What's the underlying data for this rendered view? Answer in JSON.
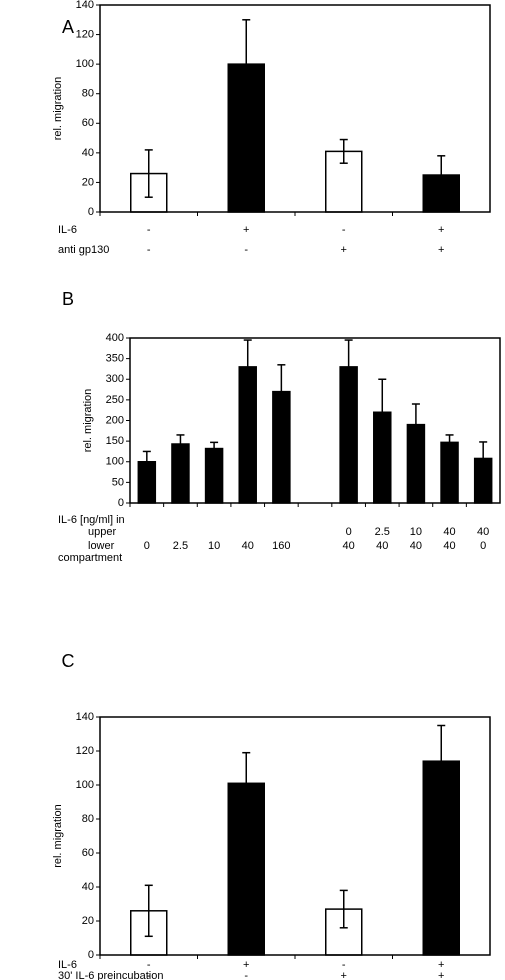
{
  "chart_data": [
    {
      "type": "bar",
      "panel": "A",
      "ylabel": "rel. migration",
      "values": [
        26,
        100,
        41,
        25
      ],
      "errors": [
        16,
        30,
        8,
        13
      ],
      "colors": [
        "#ffffff",
        "#000000",
        "#ffffff",
        "#000000"
      ],
      "ylim": [
        0,
        140
      ],
      "yticks": [
        0,
        20,
        40,
        60,
        80,
        100,
        120,
        140
      ],
      "rows": [
        {
          "label": "IL-6",
          "values": [
            "-",
            "+",
            "-",
            "+"
          ]
        },
        {
          "label": "anti gp130",
          "values": [
            "-",
            "-",
            "+",
            "+"
          ]
        }
      ]
    },
    {
      "type": "bar",
      "panel": "B",
      "ylabel": "rel. migration",
      "values": [
        100,
        143,
        132,
        330,
        270,
        null,
        330,
        220,
        190,
        147,
        108
      ],
      "errors": [
        25,
        22,
        15,
        65,
        65,
        null,
        65,
        80,
        50,
        18,
        40
      ],
      "colors": [
        "#000000",
        "#000000",
        "#000000",
        "#000000",
        "#000000",
        null,
        "#000000",
        "#000000",
        "#000000",
        "#000000",
        "#000000"
      ],
      "ylim": [
        0,
        400
      ],
      "yticks": [
        0,
        50,
        100,
        150,
        200,
        250,
        300,
        350,
        400
      ],
      "row_header": "IL-6 [ng/ml] in",
      "rows": [
        {
          "label": "upper",
          "values": [
            null,
            null,
            null,
            null,
            null,
            null,
            "0",
            "2.5",
            "10",
            "40",
            "40"
          ]
        },
        {
          "label": "lower",
          "values": [
            "0",
            "2.5",
            "10",
            "40",
            "160",
            null,
            "40",
            "40",
            "40",
            "40",
            "0"
          ]
        }
      ],
      "row_footer": "compartment"
    },
    {
      "type": "bar",
      "panel": "C",
      "ylabel": "rel. migration",
      "values": [
        26,
        101,
        27,
        114
      ],
      "errors": [
        15,
        18,
        11,
        21
      ],
      "colors": [
        "#ffffff",
        "#000000",
        "#ffffff",
        "#000000"
      ],
      "ylim": [
        0,
        140
      ],
      "yticks": [
        0,
        20,
        40,
        60,
        80,
        100,
        120,
        140
      ],
      "rows": [
        {
          "label": "IL-6",
          "values": [
            "-",
            "+",
            "-",
            "+"
          ]
        },
        {
          "label": "30' IL-6 preincubation",
          "values": [
            "-",
            "-",
            "+",
            "+"
          ]
        }
      ]
    }
  ]
}
